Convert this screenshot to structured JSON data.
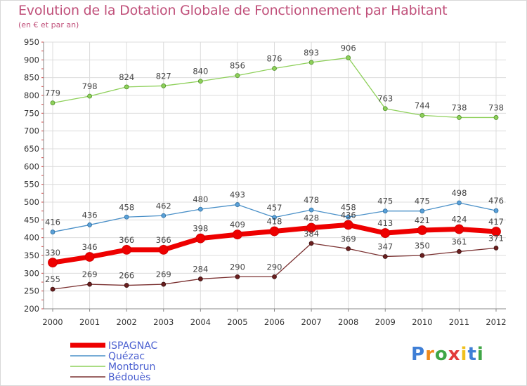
{
  "title": "Evolution de la Dotation Globale de Fonctionnement par Habitant",
  "subtitle": "(en € et par an)",
  "logo": [
    "P",
    "r",
    "o",
    "x",
    "i",
    "t",
    "i"
  ],
  "logo_colors": [
    "#3f7fd6",
    "#f08a1c",
    "#3fa646",
    "#e23b3b",
    "#f0c01c",
    "#3f7fd6",
    "#3fa646"
  ],
  "chart_data": {
    "type": "line",
    "x": [
      "2000",
      "2001",
      "2002",
      "2003",
      "2004",
      "2005",
      "2006",
      "2007",
      "2008",
      "2009",
      "2010",
      "2011",
      "2012"
    ],
    "ylim": [
      200,
      950
    ],
    "yticks": [
      200,
      250,
      300,
      350,
      400,
      450,
      500,
      550,
      600,
      650,
      700,
      750,
      800,
      850,
      900,
      950
    ],
    "grid": true,
    "legend_position": "bottom-left",
    "series": [
      {
        "name": "ISPAGNAC",
        "color": "#ee0000",
        "values": [
          330,
          346,
          366,
          366,
          398,
          409,
          418,
          428,
          436,
          413,
          421,
          424,
          417
        ],
        "labels": [
          "330",
          "346",
          "366",
          "366",
          "398",
          "409",
          "418",
          "428",
          "436",
          "413",
          "421",
          "424",
          "417"
        ]
      },
      {
        "name": "Quézac",
        "color": "#4a90c8",
        "values": [
          416,
          436,
          458,
          462,
          480,
          493,
          457,
          478,
          458,
          475,
          475,
          498,
          476
        ],
        "labels": [
          "416",
          "436",
          "458",
          "462",
          "480",
          "493",
          "457",
          "478",
          "458",
          "475",
          "475",
          "498",
          "476"
        ]
      },
      {
        "name": "Montbrun",
        "color": "#8ed05a",
        "values": [
          779,
          798,
          824,
          827,
          840,
          856,
          876,
          893,
          906,
          763,
          744,
          738,
          738
        ],
        "labels": [
          "779",
          "798",
          "824",
          "827",
          "840",
          "856",
          "876",
          "893",
          "906",
          "763",
          "744",
          "738",
          "738"
        ]
      },
      {
        "name": "Bédouès",
        "color": "#7a3030",
        "values": [
          255,
          269,
          266,
          269,
          284,
          290,
          290,
          384,
          369,
          347,
          350,
          361,
          371
        ],
        "labels": [
          "255",
          "269",
          "266",
          "269",
          "284",
          "290",
          "290",
          "384",
          "369",
          "347",
          "350",
          "361",
          "371"
        ]
      }
    ]
  }
}
